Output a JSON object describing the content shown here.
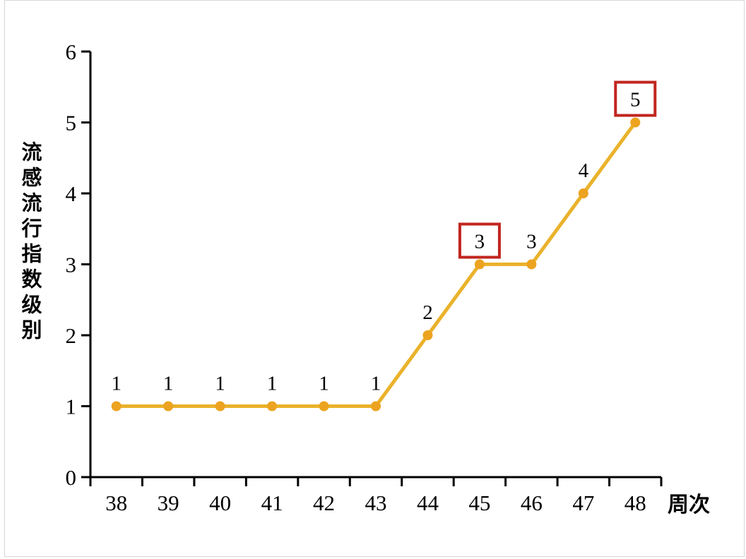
{
  "page": {
    "background": "#ffffff",
    "frame_border_color": "#d6d6d6"
  },
  "chart_data": {
    "type": "line",
    "title": "",
    "x_axis_title": "周次",
    "y_axis_title": "流感流行指数级别",
    "categories": [
      38,
      39,
      40,
      41,
      42,
      43,
      44,
      45,
      46,
      47,
      48
    ],
    "values": [
      1,
      1,
      1,
      1,
      1,
      1,
      2,
      3,
      3,
      4,
      5
    ],
    "point_labels": [
      "1",
      "1",
      "1",
      "1",
      "1",
      "1",
      "2",
      "3",
      "3",
      "4",
      "5"
    ],
    "highlighted_categories": [
      45,
      48
    ],
    "ylim": [
      0,
      6
    ],
    "yticks": [
      0,
      1,
      2,
      3,
      4,
      5,
      6
    ],
    "grid": false,
    "legend_position": "none",
    "colors": {
      "line": "#EAB22B",
      "marker": "#ECA31F",
      "axis": "#000000",
      "tick_text": "#000000",
      "point_label_text": "#000000",
      "highlight_box_border": "#C1251F",
      "highlight_box_fill": "#ffffff"
    }
  }
}
